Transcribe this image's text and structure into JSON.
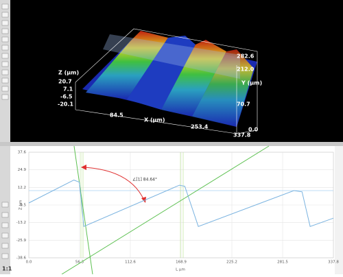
{
  "view3d": {
    "z_axis": {
      "label": "Z (µm)",
      "ticks": [
        "20.7",
        "7.1",
        "-6.5",
        "-20.1"
      ]
    },
    "x_axis": {
      "label": "X (µm)",
      "ticks": [
        "84.5",
        "253.4",
        "337.8"
      ]
    },
    "y_axis": {
      "label": "Y (µm)",
      "ticks": [
        "282.6",
        "212.0",
        "70.7",
        "0.0"
      ]
    }
  },
  "profile_chart": {
    "type": "line",
    "y_label": "Z µm",
    "x_label": "L µm",
    "xlim": [
      0,
      337.8
    ],
    "ylim": [
      -38.6,
      37.6
    ],
    "xticks": [
      {
        "value": 0,
        "label": "0.0"
      },
      56.3,
      112.6,
      168.9,
      225.2,
      281.5,
      337.8
    ],
    "yticks": [
      37.6,
      24.9,
      12.2,
      -0.5,
      -13.2,
      -25.9,
      -38.6
    ],
    "x": [
      0,
      50,
      56,
      61,
      167,
      173,
      188,
      294,
      303,
      312,
      337.8
    ],
    "values": [
      1.0,
      17.5,
      16,
      -16,
      13.8,
      13,
      -16,
      9.9,
      9,
      -16,
      -10
    ],
    "color": "#7ab3e0",
    "annotation": "∠[1] 84.64°"
  },
  "zoom_label": "1:1"
}
